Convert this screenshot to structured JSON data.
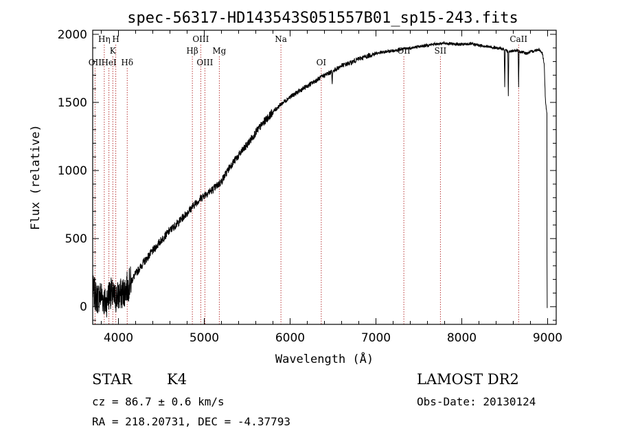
{
  "chart_data": {
    "type": "line",
    "title": "spec-56317-HD143543S051557B01_sp15-243.fits",
    "xlabel": "Wavelength (Å)",
    "ylabel": "Flux (relative)",
    "xlim": [
      3700,
      9100
    ],
    "ylim": [
      -130,
      2030
    ],
    "x_ticks": [
      4000,
      5000,
      6000,
      7000,
      8000,
      9000
    ],
    "y_ticks": [
      0,
      500,
      1000,
      1500,
      2000
    ],
    "grid": false,
    "series": [
      {
        "x": [
          3700,
          3750,
          3800,
          3850,
          3900,
          3950,
          4000,
          4050,
          4100,
          4200,
          4300,
          4400,
          4500,
          4600,
          4700,
          4800,
          4900,
          5000,
          5100,
          5200,
          5300,
          5400,
          5500,
          5600,
          5700,
          5800,
          5900,
          6000,
          6100,
          6200,
          6300,
          6400,
          6500,
          6600,
          6700,
          6800,
          6900,
          7000,
          7100,
          7200,
          7300,
          7400,
          7500,
          7600,
          7700,
          7800,
          7900,
          8000,
          8100,
          8200,
          8300,
          8400,
          8500,
          8550,
          8600,
          8650,
          8700,
          8750,
          8800,
          8850,
          8900,
          8940,
          8960,
          8975,
          8990
        ],
        "values": [
          120,
          60,
          90,
          20,
          110,
          60,
          80,
          100,
          140,
          240,
          330,
          410,
          490,
          560,
          620,
          690,
          760,
          820,
          860,
          920,
          1030,
          1110,
          1190,
          1280,
          1360,
          1430,
          1490,
          1540,
          1580,
          1620,
          1660,
          1700,
          1730,
          1770,
          1790,
          1820,
          1840,
          1860,
          1870,
          1880,
          1890,
          1900,
          1910,
          1920,
          1930,
          1935,
          1930,
          1925,
          1930,
          1920,
          1910,
          1900,
          1890,
          1870,
          1880,
          1880,
          1870,
          1860,
          1870,
          1880,
          1890,
          1860,
          1780,
          1500,
          1420
        ]
      }
    ],
    "absorption_dips": [
      {
        "x": 6490,
        "depth": 100
      },
      {
        "x": 8500,
        "depth": 270
      },
      {
        "x": 8542,
        "depth": 330
      },
      {
        "x": 8662,
        "depth": 260
      }
    ],
    "line_markers": [
      {
        "x": 3727,
        "label": "OII",
        "row": 3
      },
      {
        "x": 3835,
        "label": "Hη",
        "row": 1
      },
      {
        "x": 3889,
        "label": "HeI",
        "row": 3
      },
      {
        "x": 3934,
        "label": "K",
        "row": 2
      },
      {
        "x": 3969,
        "label": "H",
        "row": 1
      },
      {
        "x": 4102,
        "label": "Hδ",
        "row": 3
      },
      {
        "x": 4861,
        "label": "Hβ",
        "row": 2
      },
      {
        "x": 4959,
        "label": "OIII",
        "row": 1
      },
      {
        "x": 5007,
        "label": "OIII",
        "row": 3
      },
      {
        "x": 5175,
        "label": "Mg",
        "row": 2
      },
      {
        "x": 5893,
        "label": "Na",
        "row": 1
      },
      {
        "x": 6363,
        "label": "OI",
        "row": 3
      },
      {
        "x": 7325,
        "label": "OII",
        "row": 2
      },
      {
        "x": 7751,
        "label": "SII",
        "row": 2
      },
      {
        "x": 8662,
        "label": "CaII",
        "row": 1
      }
    ]
  },
  "info": {
    "class_label": "STAR",
    "subclass": "K4",
    "survey": "LAMOST DR2",
    "cz": "cz = 86.7 ± 0.6 km/s",
    "obs_date": "Obs-Date: 20130124",
    "coords": "RA = 218.20731, DEC =  -4.37793"
  },
  "colors": {
    "spectrum": "#000000",
    "marker_lines": "#b02020",
    "axes": "#000000",
    "background": "#ffffff"
  }
}
